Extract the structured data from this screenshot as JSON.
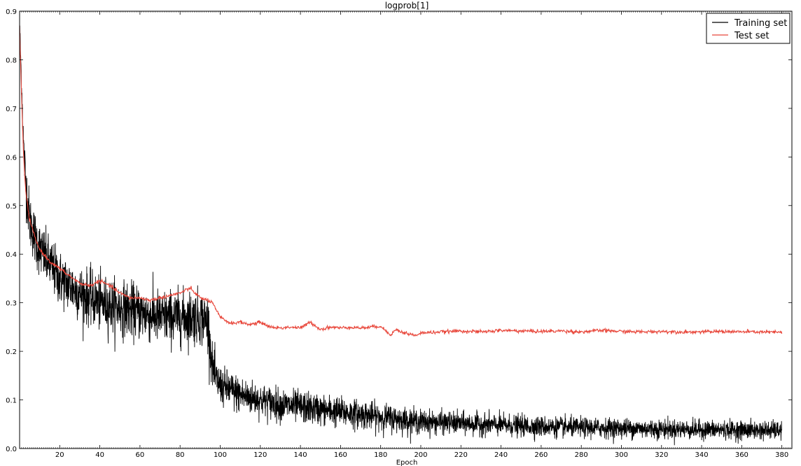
{
  "chart_data": {
    "type": "line",
    "title": "logprob[1]",
    "xlabel": "Epoch",
    "ylabel": "",
    "xlim": [
      0,
      385
    ],
    "ylim": [
      0.0,
      0.9
    ],
    "x_ticks": [
      20,
      40,
      60,
      80,
      100,
      120,
      140,
      160,
      180,
      200,
      220,
      240,
      260,
      280,
      300,
      320,
      340,
      360,
      380
    ],
    "y_ticks": [
      0.0,
      0.1,
      0.2,
      0.3,
      0.4,
      0.5,
      0.6,
      0.7,
      0.8,
      0.9
    ],
    "grid": false,
    "legend_position": "top-right",
    "series": [
      {
        "name": "Training set",
        "color": "#000000",
        "x": [
          0,
          1,
          2,
          3,
          5,
          8,
          10,
          15,
          20,
          30,
          40,
          50,
          60,
          70,
          80,
          90,
          94,
          96,
          98,
          100,
          110,
          120,
          130,
          140,
          150,
          160,
          170,
          180,
          190,
          200,
          220,
          240,
          260,
          280,
          300,
          320,
          340,
          360,
          380
        ],
        "y": [
          0.87,
          0.75,
          0.62,
          0.55,
          0.47,
          0.43,
          0.41,
          0.38,
          0.35,
          0.32,
          0.3,
          0.29,
          0.28,
          0.27,
          0.27,
          0.27,
          0.26,
          0.17,
          0.14,
          0.13,
          0.11,
          0.1,
          0.09,
          0.085,
          0.08,
          0.075,
          0.07,
          0.065,
          0.06,
          0.055,
          0.052,
          0.048,
          0.045,
          0.043,
          0.042,
          0.04,
          0.039,
          0.038,
          0.037
        ],
        "noise_amplitude": [
          0.02,
          0.03,
          0.04,
          0.05,
          0.05,
          0.05,
          0.05,
          0.05,
          0.05,
          0.05,
          0.05,
          0.05,
          0.05,
          0.05,
          0.05,
          0.05,
          0.05,
          0.04,
          0.04,
          0.035,
          0.035,
          0.03,
          0.03,
          0.03,
          0.028,
          0.028,
          0.026,
          0.025,
          0.024,
          0.022,
          0.02,
          0.02,
          0.019,
          0.018,
          0.018,
          0.018,
          0.017,
          0.017,
          0.017
        ]
      },
      {
        "name": "Test set",
        "color": "#e8463a",
        "x": [
          0,
          1,
          2,
          3,
          5,
          8,
          10,
          15,
          20,
          25,
          30,
          35,
          40,
          45,
          50,
          55,
          60,
          65,
          70,
          75,
          80,
          85,
          90,
          94,
          96,
          98,
          100,
          105,
          110,
          115,
          120,
          125,
          130,
          135,
          140,
          145,
          150,
          155,
          160,
          165,
          170,
          175,
          180,
          183,
          185,
          188,
          190,
          195,
          198,
          200,
          210,
          220,
          230,
          240,
          250,
          260,
          270,
          280,
          290,
          300,
          310,
          320,
          330,
          340,
          350,
          360,
          370,
          380
        ],
        "y": [
          0.87,
          0.72,
          0.6,
          0.53,
          0.47,
          0.43,
          0.41,
          0.385,
          0.37,
          0.355,
          0.34,
          0.335,
          0.345,
          0.335,
          0.32,
          0.31,
          0.31,
          0.305,
          0.31,
          0.315,
          0.32,
          0.33,
          0.31,
          0.305,
          0.3,
          0.285,
          0.27,
          0.258,
          0.26,
          0.255,
          0.26,
          0.25,
          0.248,
          0.25,
          0.248,
          0.26,
          0.245,
          0.25,
          0.248,
          0.25,
          0.248,
          0.25,
          0.252,
          0.24,
          0.235,
          0.245,
          0.24,
          0.235,
          0.232,
          0.238,
          0.24,
          0.242,
          0.24,
          0.243,
          0.242,
          0.241,
          0.242,
          0.24,
          0.243,
          0.241,
          0.24,
          0.241,
          0.24,
          0.24,
          0.241,
          0.24,
          0.24,
          0.239
        ]
      }
    ]
  }
}
